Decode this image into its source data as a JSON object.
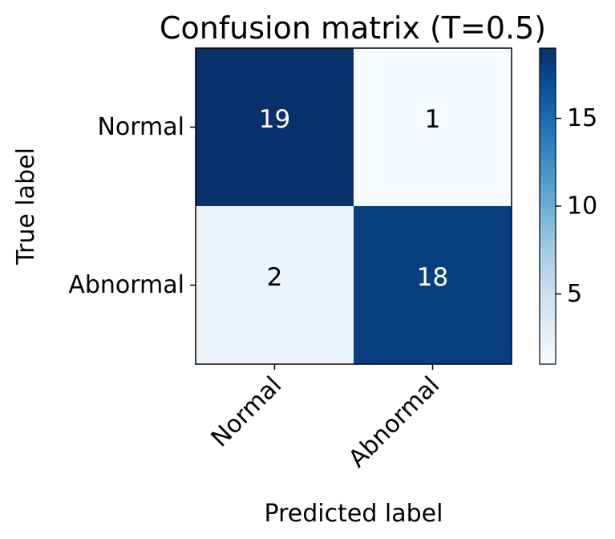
{
  "chart_data": {
    "type": "heatmap",
    "title": "Confusion matrix (T=0.5)",
    "xlabel": "Predicted label",
    "ylabel": "True label",
    "x_categories": [
      "Normal",
      "Abnormal"
    ],
    "y_categories": [
      "Normal",
      "Abnormal"
    ],
    "values": [
      [
        19,
        1
      ],
      [
        2,
        18
      ]
    ],
    "colormap": "Blues",
    "colorbar": {
      "range": [
        1,
        19
      ],
      "ticks": [
        5,
        10,
        15
      ],
      "tick_labels": [
        "5",
        "10",
        "15"
      ]
    },
    "grid": false
  }
}
